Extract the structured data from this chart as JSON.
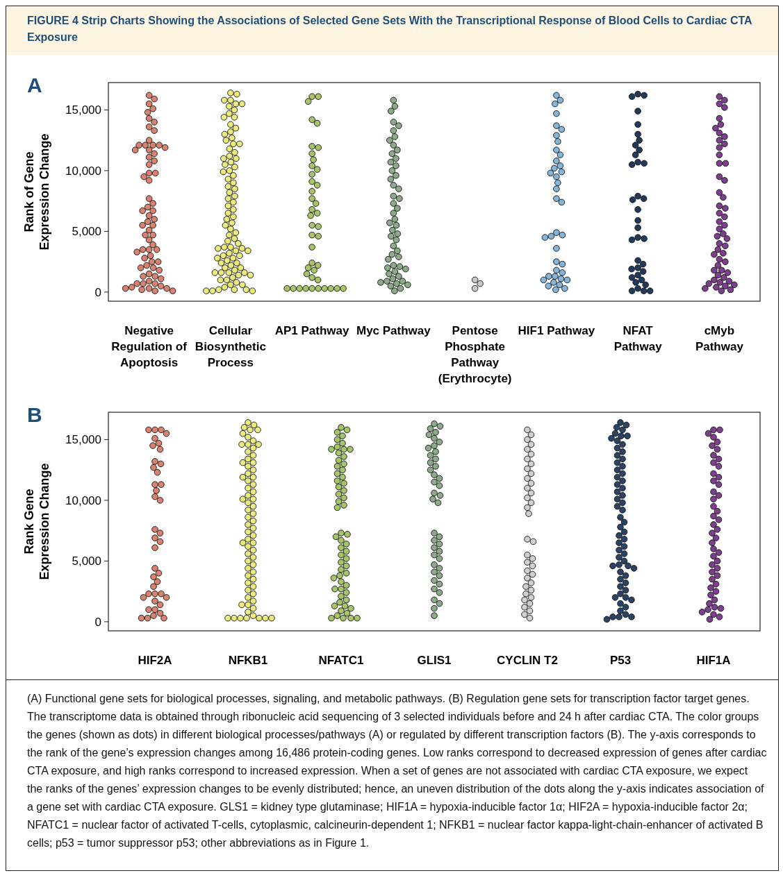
{
  "chart_data": [
    {
      "type": "scatter",
      "title": "FIGURE 4 Strip Charts Showing the Associations of Selected Gene Sets With the Transcriptional Response of Blood Cells to Cardiac CTA Exposure",
      "ylabel": "Rank of Gene Expression Change",
      "annotations": [
        "A"
      ],
      "marker": "circle",
      "grid": false,
      "categories": [
        "Negative Regulation of Apoptosis",
        "Cellular Biosynthetic Process",
        "AP1 Pathway",
        "Myc Pathway",
        "Pentose Phosphate Pathway (Erythrocyte)",
        "HIF1 Pathway",
        "NFAT Pathway",
        "cMyb Pathway"
      ],
      "ylim": [
        -750,
        17250
      ],
      "yticks": [
        0,
        {
          "value": 5000,
          "label": "5,000"
        },
        {
          "value": 10000,
          "label": "10,000"
        },
        {
          "value": 15000,
          "label": "15,000"
        }
      ],
      "series": [
        {
          "color": "#d9826f",
          "x": [
            "Negative Regulation of Apoptosis",
            "Negative Regulation of Apoptosis",
            "Negative Regulation of Apoptosis",
            "Negative Regulation of Apoptosis",
            "Negative Regulation of Apoptosis",
            "Negative Regulation of Apoptosis",
            "Negative Regulation of Apoptosis",
            "Negative Regulation of Apoptosis",
            "Negative Regulation of Apoptosis",
            "Negative Regulation of Apoptosis",
            "Negative Regulation of Apoptosis",
            "Negative Regulation of Apoptosis",
            "Negative Regulation of Apoptosis",
            "Negative Regulation of Apoptosis",
            "Negative Regulation of Apoptosis",
            "Negative Regulation of Apoptosis",
            "Negative Regulation of Apoptosis",
            "Negative Regulation of Apoptosis",
            "Negative Regulation of Apoptosis",
            "Negative Regulation of Apoptosis",
            "Negative Regulation of Apoptosis",
            "Negative Regulation of Apoptosis",
            "Negative Regulation of Apoptosis",
            "Negative Regulation of Apoptosis",
            "Negative Regulation of Apoptosis",
            "Negative Regulation of Apoptosis",
            "Negative Regulation of Apoptosis",
            "Negative Regulation of Apoptosis",
            "Negative Regulation of Apoptosis",
            "Negative Regulation of Apoptosis",
            "Negative Regulation of Apoptosis",
            "Negative Regulation of Apoptosis",
            "Negative Regulation of Apoptosis",
            "Negative Regulation of Apoptosis",
            "Negative Regulation of Apoptosis",
            "Negative Regulation of Apoptosis",
            "Negative Regulation of Apoptosis",
            "Negative Regulation of Apoptosis",
            "Negative Regulation of Apoptosis",
            "Negative Regulation of Apoptosis",
            "Negative Regulation of Apoptosis",
            "Negative Regulation of Apoptosis",
            "Negative Regulation of Apoptosis",
            "Negative Regulation of Apoptosis",
            "Negative Regulation of Apoptosis",
            "Negative Regulation of Apoptosis",
            "Negative Regulation of Apoptosis",
            "Negative Regulation of Apoptosis",
            "Negative Regulation of Apoptosis",
            "Negative Regulation of Apoptosis",
            "Negative Regulation of Apoptosis",
            "Negative Regulation of Apoptosis",
            "Negative Regulation of Apoptosis",
            "Negative Regulation of Apoptosis",
            "Negative Regulation of Apoptosis",
            "Negative Regulation of Apoptosis",
            "Negative Regulation of Apoptosis",
            "Negative Regulation of Apoptosis",
            "Negative Regulation of Apoptosis",
            "Negative Regulation of Apoptosis",
            "Negative Regulation of Apoptosis",
            "Negative Regulation of Apoptosis",
            "Negative Regulation of Apoptosis",
            "Negative Regulation of Apoptosis",
            "Negative Regulation of Apoptosis",
            "Negative Regulation of Apoptosis",
            "Negative Regulation of Apoptosis",
            "Negative Regulation of Apoptosis"
          ],
          "values": [
            16200,
            15900,
            15500,
            15100,
            14800,
            14300,
            14000,
            13600,
            13300,
            12500,
            12100,
            12100,
            12100,
            12100,
            11900,
            11700,
            11700,
            11400,
            11100,
            10800,
            10500,
            9800,
            9800,
            9500,
            9200,
            7700,
            7300,
            7000,
            6700,
            6700,
            6300,
            6000,
            5800,
            5500,
            5500,
            5100,
            4700,
            4700,
            4300,
            3900,
            3500,
            3500,
            3500,
            3300,
            3000,
            2800,
            2500,
            2500,
            2200,
            2000,
            2000,
            1800,
            1500,
            1300,
            1300,
            1100,
            900,
            700,
            700,
            700,
            500,
            400,
            300,
            300,
            300,
            200,
            100,
            100
          ]
        },
        {
          "color": "#ecec7e",
          "x": [
            "Cellular Biosynthetic Process",
            "Cellular Biosynthetic Process",
            "Cellular Biosynthetic Process",
            "Cellular Biosynthetic Process",
            "Cellular Biosynthetic Process",
            "Cellular Biosynthetic Process",
            "Cellular Biosynthetic Process",
            "Cellular Biosynthetic Process",
            "Cellular Biosynthetic Process",
            "Cellular Biosynthetic Process",
            "Cellular Biosynthetic Process",
            "Cellular Biosynthetic Process",
            "Cellular Biosynthetic Process",
            "Cellular Biosynthetic Process",
            "Cellular Biosynthetic Process",
            "Cellular Biosynthetic Process",
            "Cellular Biosynthetic Process",
            "Cellular Biosynthetic Process",
            "Cellular Biosynthetic Process",
            "Cellular Biosynthetic Process",
            "Cellular Biosynthetic Process",
            "Cellular Biosynthetic Process",
            "Cellular Biosynthetic Process",
            "Cellular Biosynthetic Process",
            "Cellular Biosynthetic Process",
            "Cellular Biosynthetic Process",
            "Cellular Biosynthetic Process",
            "Cellular Biosynthetic Process",
            "Cellular Biosynthetic Process",
            "Cellular Biosynthetic Process",
            "Cellular Biosynthetic Process",
            "Cellular Biosynthetic Process",
            "Cellular Biosynthetic Process",
            "Cellular Biosynthetic Process",
            "Cellular Biosynthetic Process",
            "Cellular Biosynthetic Process",
            "Cellular Biosynthetic Process",
            "Cellular Biosynthetic Process",
            "Cellular Biosynthetic Process",
            "Cellular Biosynthetic Process",
            "Cellular Biosynthetic Process",
            "Cellular Biosynthetic Process",
            "Cellular Biosynthetic Process",
            "Cellular Biosynthetic Process",
            "Cellular Biosynthetic Process",
            "Cellular Biosynthetic Process",
            "Cellular Biosynthetic Process",
            "Cellular Biosynthetic Process",
            "Cellular Biosynthetic Process",
            "Cellular Biosynthetic Process",
            "Cellular Biosynthetic Process",
            "Cellular Biosynthetic Process",
            "Cellular Biosynthetic Process",
            "Cellular Biosynthetic Process",
            "Cellular Biosynthetic Process",
            "Cellular Biosynthetic Process",
            "Cellular Biosynthetic Process",
            "Cellular Biosynthetic Process",
            "Cellular Biosynthetic Process",
            "Cellular Biosynthetic Process",
            "Cellular Biosynthetic Process",
            "Cellular Biosynthetic Process",
            "Cellular Biosynthetic Process",
            "Cellular Biosynthetic Process",
            "Cellular Biosynthetic Process",
            "Cellular Biosynthetic Process",
            "Cellular Biosynthetic Process",
            "Cellular Biosynthetic Process",
            "Cellular Biosynthetic Process",
            "Cellular Biosynthetic Process",
            "Cellular Biosynthetic Process",
            "Cellular Biosynthetic Process",
            "Cellular Biosynthetic Process",
            "Cellular Biosynthetic Process",
            "Cellular Biosynthetic Process",
            "Cellular Biosynthetic Process",
            "Cellular Biosynthetic Process",
            "Cellular Biosynthetic Process",
            "Cellular Biosynthetic Process",
            "Cellular Biosynthetic Process",
            "Cellular Biosynthetic Process",
            "Cellular Biosynthetic Process",
            "Cellular Biosynthetic Process",
            "Cellular Biosynthetic Process",
            "Cellular Biosynthetic Process",
            "Cellular Biosynthetic Process",
            "Cellular Biosynthetic Process",
            "Cellular Biosynthetic Process"
          ],
          "values": [
            16400,
            16300,
            15800,
            15800,
            15500,
            15500,
            15300,
            15000,
            14700,
            14400,
            14400,
            13800,
            13500,
            13200,
            13000,
            12700,
            12500,
            12200,
            12200,
            11800,
            11500,
            11200,
            11000,
            11000,
            10700,
            10500,
            10300,
            10000,
            9900,
            9600,
            9300,
            9000,
            8700,
            8500,
            8200,
            7900,
            7700,
            7400,
            7100,
            6800,
            6500,
            6200,
            6000,
            5700,
            5500,
            5200,
            4900,
            4700,
            4400,
            4200,
            4000,
            3700,
            3700,
            3600,
            3600,
            3400,
            3400,
            3200,
            3000,
            3000,
            2800,
            2800,
            2600,
            2400,
            2400,
            2200,
            2000,
            2000,
            1800,
            1600,
            1600,
            1600,
            1600,
            1400,
            1400,
            1200,
            1000,
            1000,
            800,
            600,
            600,
            400,
            200,
            200,
            200,
            100,
            100,
            100
          ]
        },
        {
          "color": "#a7c46b",
          "x": [
            "AP1 Pathway",
            "AP1 Pathway",
            "AP1 Pathway",
            "AP1 Pathway",
            "AP1 Pathway",
            "AP1 Pathway",
            "AP1 Pathway",
            "AP1 Pathway",
            "AP1 Pathway",
            "AP1 Pathway",
            "AP1 Pathway",
            "AP1 Pathway",
            "AP1 Pathway",
            "AP1 Pathway",
            "AP1 Pathway",
            "AP1 Pathway",
            "AP1 Pathway",
            "AP1 Pathway",
            "AP1 Pathway",
            "AP1 Pathway",
            "AP1 Pathway",
            "AP1 Pathway",
            "AP1 Pathway",
            "AP1 Pathway",
            "AP1 Pathway",
            "AP1 Pathway",
            "AP1 Pathway",
            "AP1 Pathway",
            "AP1 Pathway",
            "AP1 Pathway",
            "AP1 Pathway",
            "AP1 Pathway",
            "AP1 Pathway",
            "AP1 Pathway",
            "AP1 Pathway",
            "AP1 Pathway",
            "AP1 Pathway",
            "AP1 Pathway",
            "AP1 Pathway",
            "AP1 Pathway",
            "AP1 Pathway",
            "AP1 Pathway"
          ],
          "values": [
            16100,
            16100,
            15700,
            14200,
            13900,
            12000,
            11900,
            11400,
            10900,
            10400,
            10100,
            9700,
            9100,
            8800,
            8300,
            7700,
            7300,
            6800,
            6500,
            6300,
            5500,
            5400,
            4700,
            4600,
            3700,
            2400,
            2200,
            2000,
            1800,
            1500,
            1200,
            1000,
            300,
            300,
            300,
            300,
            300,
            300,
            300,
            300,
            300,
            300
          ]
        },
        {
          "color": "#8daa8a",
          "x": [
            "Myc Pathway",
            "Myc Pathway",
            "Myc Pathway",
            "Myc Pathway",
            "Myc Pathway",
            "Myc Pathway",
            "Myc Pathway",
            "Myc Pathway",
            "Myc Pathway",
            "Myc Pathway",
            "Myc Pathway",
            "Myc Pathway",
            "Myc Pathway",
            "Myc Pathway",
            "Myc Pathway",
            "Myc Pathway",
            "Myc Pathway",
            "Myc Pathway",
            "Myc Pathway",
            "Myc Pathway",
            "Myc Pathway",
            "Myc Pathway",
            "Myc Pathway",
            "Myc Pathway",
            "Myc Pathway",
            "Myc Pathway",
            "Myc Pathway",
            "Myc Pathway",
            "Myc Pathway",
            "Myc Pathway",
            "Myc Pathway",
            "Myc Pathway",
            "Myc Pathway",
            "Myc Pathway",
            "Myc Pathway",
            "Myc Pathway",
            "Myc Pathway",
            "Myc Pathway",
            "Myc Pathway",
            "Myc Pathway",
            "Myc Pathway",
            "Myc Pathway",
            "Myc Pathway",
            "Myc Pathway",
            "Myc Pathway",
            "Myc Pathway",
            "Myc Pathway",
            "Myc Pathway",
            "Myc Pathway",
            "Myc Pathway",
            "Myc Pathway",
            "Myc Pathway"
          ],
          "values": [
            15800,
            15300,
            14900,
            14000,
            13700,
            13300,
            12800,
            12500,
            12100,
            11700,
            11400,
            11000,
            10700,
            10400,
            10000,
            9600,
            9300,
            8800,
            8500,
            7900,
            7700,
            7300,
            6900,
            6500,
            6000,
            5700,
            5500,
            5100,
            4800,
            4600,
            4300,
            3800,
            3400,
            3100,
            2900,
            2700,
            2200,
            2100,
            2000,
            1900,
            1700,
            1500,
            1300,
            1100,
            900,
            900,
            800,
            700,
            600,
            500,
            300,
            100
          ]
        },
        {
          "color": "#c9c9c9",
          "x": [
            "Pentose Phosphate Pathway (Erythrocyte)",
            "Pentose Phosphate Pathway (Erythrocyte)",
            "Pentose Phosphate Pathway (Erythrocyte)"
          ],
          "values": [
            1000,
            700,
            300
          ]
        },
        {
          "color": "#84b5da",
          "x": [
            "HIF1 Pathway",
            "HIF1 Pathway",
            "HIF1 Pathway",
            "HIF1 Pathway",
            "HIF1 Pathway",
            "HIF1 Pathway",
            "HIF1 Pathway",
            "HIF1 Pathway",
            "HIF1 Pathway",
            "HIF1 Pathway",
            "HIF1 Pathway",
            "HIF1 Pathway",
            "HIF1 Pathway",
            "HIF1 Pathway",
            "HIF1 Pathway",
            "HIF1 Pathway",
            "HIF1 Pathway",
            "HIF1 Pathway",
            "HIF1 Pathway",
            "HIF1 Pathway",
            "HIF1 Pathway",
            "HIF1 Pathway",
            "HIF1 Pathway",
            "HIF1 Pathway",
            "HIF1 Pathway",
            "HIF1 Pathway",
            "HIF1 Pathway",
            "HIF1 Pathway",
            "HIF1 Pathway",
            "HIF1 Pathway",
            "HIF1 Pathway",
            "HIF1 Pathway",
            "HIF1 Pathway",
            "HIF1 Pathway",
            "HIF1 Pathway",
            "HIF1 Pathway",
            "HIF1 Pathway",
            "HIF1 Pathway",
            "HIF1 Pathway"
          ],
          "values": [
            16200,
            15800,
            15500,
            14700,
            13700,
            13400,
            12900,
            12400,
            11700,
            11300,
            10800,
            10400,
            10200,
            9900,
            9800,
            9500,
            9000,
            8500,
            7700,
            7400,
            4900,
            4700,
            4600,
            4500,
            3600,
            2500,
            2300,
            1800,
            1600,
            1300,
            1300,
            1100,
            1000,
            1000,
            800,
            600,
            500,
            300,
            200
          ]
        },
        {
          "color": "#22395a",
          "x": [
            "NFAT Pathway",
            "NFAT Pathway",
            "NFAT Pathway",
            "NFAT Pathway",
            "NFAT Pathway",
            "NFAT Pathway",
            "NFAT Pathway",
            "NFAT Pathway",
            "NFAT Pathway",
            "NFAT Pathway",
            "NFAT Pathway",
            "NFAT Pathway",
            "NFAT Pathway",
            "NFAT Pathway",
            "NFAT Pathway",
            "NFAT Pathway",
            "NFAT Pathway",
            "NFAT Pathway",
            "NFAT Pathway",
            "NFAT Pathway",
            "NFAT Pathway",
            "NFAT Pathway",
            "NFAT Pathway",
            "NFAT Pathway",
            "NFAT Pathway",
            "NFAT Pathway",
            "NFAT Pathway",
            "NFAT Pathway",
            "NFAT Pathway",
            "NFAT Pathway",
            "NFAT Pathway",
            "NFAT Pathway",
            "NFAT Pathway",
            "NFAT Pathway",
            "NFAT Pathway",
            "NFAT Pathway"
          ],
          "values": [
            16300,
            16200,
            16100,
            14900,
            13800,
            13000,
            12500,
            12100,
            11700,
            11300,
            10700,
            10600,
            10500,
            7900,
            7700,
            7600,
            6800,
            5900,
            5300,
            4500,
            4400,
            4300,
            2600,
            2300,
            2000,
            1900,
            1700,
            1400,
            1200,
            1000,
            800,
            600,
            300,
            100,
            100,
            100
          ]
        },
        {
          "color": "#7d3f8e",
          "x": [
            "cMyb Pathway",
            "cMyb Pathway",
            "cMyb Pathway",
            "cMyb Pathway",
            "cMyb Pathway",
            "cMyb Pathway",
            "cMyb Pathway",
            "cMyb Pathway",
            "cMyb Pathway",
            "cMyb Pathway",
            "cMyb Pathway",
            "cMyb Pathway",
            "cMyb Pathway",
            "cMyb Pathway",
            "cMyb Pathway",
            "cMyb Pathway",
            "cMyb Pathway",
            "cMyb Pathway",
            "cMyb Pathway",
            "cMyb Pathway",
            "cMyb Pathway",
            "cMyb Pathway",
            "cMyb Pathway",
            "cMyb Pathway",
            "cMyb Pathway",
            "cMyb Pathway",
            "cMyb Pathway",
            "cMyb Pathway",
            "cMyb Pathway",
            "cMyb Pathway",
            "cMyb Pathway",
            "cMyb Pathway",
            "cMyb Pathway",
            "cMyb Pathway",
            "cMyb Pathway",
            "cMyb Pathway",
            "cMyb Pathway",
            "cMyb Pathway",
            "cMyb Pathway",
            "cMyb Pathway",
            "cMyb Pathway",
            "cMyb Pathway",
            "cMyb Pathway",
            "cMyb Pathway",
            "cMyb Pathway",
            "cMyb Pathway",
            "cMyb Pathway",
            "cMyb Pathway",
            "cMyb Pathway",
            "cMyb Pathway",
            "cMyb Pathway",
            "cMyb Pathway"
          ],
          "values": [
            16100,
            15800,
            15500,
            15200,
            14300,
            13800,
            13500,
            13100,
            12800,
            12500,
            12200,
            11900,
            11300,
            10600,
            10600,
            9500,
            9200,
            8200,
            7800,
            7100,
            6900,
            6500,
            6200,
            5800,
            5500,
            5200,
            4800,
            4600,
            4400,
            4000,
            3800,
            3500,
            3200,
            3100,
            2700,
            2500,
            2200,
            1800,
            1800,
            1600,
            1400,
            1200,
            1000,
            900,
            800,
            700,
            600,
            500,
            400,
            300,
            200,
            100
          ]
        }
      ]
    },
    {
      "type": "scatter",
      "ylabel": "Rank Gene Expression Change",
      "annotations": [
        "B",
        "(A) Functional gene sets for biological processes, signaling, and metabolic pathways. (B) Regulation gene sets for transcription factor target genes. The transcriptome data is obtained through ribonucleic acid sequencing of 3 selected individuals before and 24 h after cardiac CTA. The color groups the genes (shown as dots) in different biological processes/pathways (A) or regulated by different transcription factors (B). The y-axis corresponds to the rank of the gene’s expression changes among 16,486 protein-coding genes. Low ranks correspond to decreased expression of genes after cardiac CTA exposure, and high ranks correspond to increased expression. When a set of genes are not associated with cardiac CTA exposure, we expect the ranks of the genes’ expression changes to be evenly distributed; hence, an uneven distribution of the dots along the y-axis indicates association of a gene set with cardiac CTA exposure. GLS1 = kidney type glutaminase; HIF1A = hypoxia-inducible factor 1α; HIF2A = hypoxia-inducible factor 2α; NFATC1 = nuclear factor of activated T-cells, cytoplasmic, calcineurin-dependent 1; NFKB1 = nuclear factor kappa-light-chain-enhancer of activated B cells; p53 = tumor suppressor p53; other abbreviations as in Figure 1."
      ],
      "marker": "circle",
      "grid": false,
      "categories": [
        "HIF2A",
        "NFKB1",
        "NFATC1",
        "GLIS1",
        "CYCLIN T2",
        "P53",
        "HIF1A"
      ],
      "ylim": [
        -750,
        17250
      ],
      "yticks": [
        0,
        {
          "value": 5000,
          "label": "5,000"
        },
        {
          "value": 10000,
          "label": "10,000"
        },
        {
          "value": 15000,
          "label": "15,000"
        }
      ],
      "series": [
        {
          "color": "#d9826f",
          "x": [
            "HIF2A",
            "HIF2A",
            "HIF2A",
            "HIF2A",
            "HIF2A",
            "HIF2A",
            "HIF2A",
            "HIF2A",
            "HIF2A",
            "HIF2A",
            "HIF2A",
            "HIF2A",
            "HIF2A",
            "HIF2A",
            "HIF2A",
            "HIF2A",
            "HIF2A",
            "HIF2A",
            "HIF2A",
            "HIF2A",
            "HIF2A",
            "HIF2A",
            "HIF2A",
            "HIF2A",
            "HIF2A",
            "HIF2A",
            "HIF2A",
            "HIF2A",
            "HIF2A",
            "HIF2A",
            "HIF2A",
            "HIF2A",
            "HIF2A",
            "HIF2A",
            "HIF2A",
            "HIF2A",
            "HIF2A",
            "HIF2A",
            "HIF2A",
            "HIF2A",
            "HIF2A"
          ],
          "values": [
            15800,
            15800,
            15800,
            15500,
            15100,
            14700,
            14500,
            14200,
            13200,
            13000,
            12700,
            12300,
            11300,
            11300,
            10800,
            10300,
            10000,
            7600,
            7300,
            6900,
            6600,
            6100,
            4400,
            4000,
            3700,
            3300,
            2900,
            2300,
            2300,
            2300,
            2000,
            2000,
            1700,
            1400,
            1000,
            1000,
            700,
            500,
            300,
            300,
            300
          ]
        },
        {
          "color": "#ecec7e",
          "x": [
            "NFKB1",
            "NFKB1",
            "NFKB1",
            "NFKB1",
            "NFKB1",
            "NFKB1",
            "NFKB1",
            "NFKB1",
            "NFKB1",
            "NFKB1",
            "NFKB1",
            "NFKB1",
            "NFKB1",
            "NFKB1",
            "NFKB1",
            "NFKB1",
            "NFKB1",
            "NFKB1",
            "NFKB1",
            "NFKB1",
            "NFKB1",
            "NFKB1",
            "NFKB1",
            "NFKB1",
            "NFKB1",
            "NFKB1",
            "NFKB1",
            "NFKB1",
            "NFKB1",
            "NFKB1",
            "NFKB1",
            "NFKB1",
            "NFKB1",
            "NFKB1",
            "NFKB1",
            "NFKB1",
            "NFKB1",
            "NFKB1",
            "NFKB1",
            "NFKB1",
            "NFKB1",
            "NFKB1",
            "NFKB1",
            "NFKB1",
            "NFKB1",
            "NFKB1",
            "NFKB1",
            "NFKB1",
            "NFKB1",
            "NFKB1",
            "NFKB1",
            "NFKB1",
            "NFKB1",
            "NFKB1",
            "NFKB1",
            "NFKB1",
            "NFKB1",
            "NFKB1",
            "NFKB1",
            "NFKB1",
            "NFKB1",
            "NFKB1",
            "NFKB1",
            "NFKB1",
            "NFKB1",
            "NFKB1",
            "NFKB1",
            "NFKB1",
            "NFKB1",
            "NFKB1"
          ],
          "values": [
            16400,
            16200,
            16000,
            15800,
            15800,
            15500,
            15200,
            14900,
            14600,
            14600,
            14600,
            14300,
            14000,
            13700,
            13400,
            13100,
            13100,
            12800,
            12500,
            12200,
            11900,
            11900,
            11600,
            11300,
            11000,
            10700,
            10400,
            10100,
            10100,
            9800,
            9500,
            9200,
            8900,
            8600,
            8300,
            8000,
            7700,
            7400,
            7100,
            6800,
            6500,
            6500,
            6200,
            5900,
            5600,
            5300,
            5000,
            4700,
            4400,
            4100,
            3800,
            3500,
            3200,
            2900,
            2600,
            2300,
            2000,
            1700,
            1400,
            1400,
            1100,
            800,
            500,
            300,
            300,
            300,
            300,
            300,
            300,
            300
          ]
        },
        {
          "color": "#a7c46b",
          "x": [
            "NFATC1",
            "NFATC1",
            "NFATC1",
            "NFATC1",
            "NFATC1",
            "NFATC1",
            "NFATC1",
            "NFATC1",
            "NFATC1",
            "NFATC1",
            "NFATC1",
            "NFATC1",
            "NFATC1",
            "NFATC1",
            "NFATC1",
            "NFATC1",
            "NFATC1",
            "NFATC1",
            "NFATC1",
            "NFATC1",
            "NFATC1",
            "NFATC1",
            "NFATC1",
            "NFATC1",
            "NFATC1",
            "NFATC1",
            "NFATC1",
            "NFATC1",
            "NFATC1",
            "NFATC1",
            "NFATC1",
            "NFATC1",
            "NFATC1",
            "NFATC1",
            "NFATC1",
            "NFATC1",
            "NFATC1",
            "NFATC1",
            "NFATC1",
            "NFATC1",
            "NFATC1",
            "NFATC1",
            "NFATC1",
            "NFATC1",
            "NFATC1",
            "NFATC1",
            "NFATC1",
            "NFATC1",
            "NFATC1",
            "NFATC1",
            "NFATC1",
            "NFATC1",
            "NFATC1",
            "NFATC1",
            "NFATC1",
            "NFATC1",
            "NFATC1",
            "NFATC1",
            "NFATC1",
            "NFATC1"
          ],
          "values": [
            16000,
            15800,
            15600,
            15300,
            15000,
            14700,
            14400,
            14200,
            14200,
            14200,
            13900,
            13600,
            13300,
            13000,
            12800,
            12500,
            12200,
            11900,
            11600,
            11400,
            11100,
            10800,
            10500,
            10200,
            9900,
            9600,
            9400,
            7300,
            7200,
            7000,
            6700,
            6400,
            6100,
            5800,
            5500,
            5200,
            4900,
            4600,
            4300,
            4000,
            3800,
            3600,
            3300,
            3000,
            2700,
            2700,
            2400,
            2100,
            1800,
            1600,
            1300,
            1300,
            1100,
            900,
            700,
            500,
            300,
            300,
            300,
            300
          ]
        },
        {
          "color": "#8daa8a",
          "x": [
            "GLIS1",
            "GLIS1",
            "GLIS1",
            "GLIS1",
            "GLIS1",
            "GLIS1",
            "GLIS1",
            "GLIS1",
            "GLIS1",
            "GLIS1",
            "GLIS1",
            "GLIS1",
            "GLIS1",
            "GLIS1",
            "GLIS1",
            "GLIS1",
            "GLIS1",
            "GLIS1",
            "GLIS1",
            "GLIS1",
            "GLIS1",
            "GLIS1",
            "GLIS1",
            "GLIS1",
            "GLIS1",
            "GLIS1",
            "GLIS1",
            "GLIS1",
            "GLIS1",
            "GLIS1",
            "GLIS1",
            "GLIS1",
            "GLIS1",
            "GLIS1",
            "GLIS1",
            "GLIS1",
            "GLIS1",
            "GLIS1",
            "GLIS1",
            "GLIS1",
            "GLIS1",
            "GLIS1",
            "GLIS1"
          ],
          "values": [
            16300,
            16100,
            15900,
            15600,
            15400,
            15100,
            14800,
            14500,
            14300,
            14000,
            13700,
            13400,
            13100,
            12800,
            12500,
            12100,
            11800,
            11500,
            11200,
            10600,
            10400,
            10100,
            9800,
            7300,
            7000,
            6700,
            6400,
            6100,
            5800,
            5500,
            5200,
            4700,
            4400,
            4100,
            3800,
            3400,
            3100,
            2700,
            2400,
            1800,
            1500,
            1100,
            500
          ]
        },
        {
          "color": "#d0d0d0",
          "x": [
            "CYCLIN T2",
            "CYCLIN T2",
            "CYCLIN T2",
            "CYCLIN T2",
            "CYCLIN T2",
            "CYCLIN T2",
            "CYCLIN T2",
            "CYCLIN T2",
            "CYCLIN T2",
            "CYCLIN T2",
            "CYCLIN T2",
            "CYCLIN T2",
            "CYCLIN T2",
            "CYCLIN T2",
            "CYCLIN T2",
            "CYCLIN T2",
            "CYCLIN T2",
            "CYCLIN T2",
            "CYCLIN T2",
            "CYCLIN T2",
            "CYCLIN T2",
            "CYCLIN T2",
            "CYCLIN T2",
            "CYCLIN T2",
            "CYCLIN T2",
            "CYCLIN T2",
            "CYCLIN T2",
            "CYCLIN T2",
            "CYCLIN T2",
            "CYCLIN T2",
            "CYCLIN T2",
            "CYCLIN T2",
            "CYCLIN T2",
            "CYCLIN T2",
            "CYCLIN T2",
            "CYCLIN T2",
            "CYCLIN T2",
            "CYCLIN T2"
          ],
          "values": [
            15800,
            15400,
            15000,
            14600,
            14200,
            13800,
            13400,
            13000,
            12600,
            12200,
            11800,
            11400,
            11000,
            10600,
            10200,
            9800,
            9400,
            8900,
            6800,
            6600,
            5500,
            5200,
            4900,
            4600,
            4200,
            3900,
            3600,
            3200,
            2900,
            2600,
            2300,
            2000,
            1800,
            1500,
            1200,
            900,
            600,
            300
          ]
        },
        {
          "color": "#2b4466",
          "x": [
            "P53",
            "P53",
            "P53",
            "P53",
            "P53",
            "P53",
            "P53",
            "P53",
            "P53",
            "P53",
            "P53",
            "P53",
            "P53",
            "P53",
            "P53",
            "P53",
            "P53",
            "P53",
            "P53",
            "P53",
            "P53",
            "P53",
            "P53",
            "P53",
            "P53",
            "P53",
            "P53",
            "P53",
            "P53",
            "P53",
            "P53",
            "P53",
            "P53",
            "P53",
            "P53",
            "P53",
            "P53",
            "P53",
            "P53",
            "P53",
            "P53",
            "P53",
            "P53",
            "P53",
            "P53",
            "P53",
            "P53",
            "P53",
            "P53",
            "P53",
            "P53",
            "P53",
            "P53",
            "P53",
            "P53",
            "P53",
            "P53",
            "P53",
            "P53",
            "P53",
            "P53",
            "P53"
          ],
          "values": [
            16400,
            16200,
            16000,
            15800,
            15500,
            15300,
            15300,
            15100,
            14900,
            14600,
            14300,
            14000,
            13700,
            13400,
            13100,
            12800,
            12500,
            12200,
            11900,
            11600,
            11300,
            11000,
            10700,
            10400,
            10100,
            9800,
            9500,
            9200,
            8600,
            8200,
            7800,
            7400,
            7100,
            6800,
            6500,
            6200,
            5900,
            5600,
            5300,
            5000,
            4700,
            4600,
            4600,
            4400,
            4100,
            3800,
            3500,
            3200,
            2900,
            2600,
            2300,
            2000,
            2000,
            1800,
            1500,
            1200,
            900,
            600,
            400,
            400,
            400,
            200
          ]
        },
        {
          "color": "#7d3f8e",
          "x": [
            "HIF1A",
            "HIF1A",
            "HIF1A",
            "HIF1A",
            "HIF1A",
            "HIF1A",
            "HIF1A",
            "HIF1A",
            "HIF1A",
            "HIF1A",
            "HIF1A",
            "HIF1A",
            "HIF1A",
            "HIF1A",
            "HIF1A",
            "HIF1A",
            "HIF1A",
            "HIF1A",
            "HIF1A",
            "HIF1A",
            "HIF1A",
            "HIF1A",
            "HIF1A",
            "HIF1A",
            "HIF1A",
            "HIF1A",
            "HIF1A",
            "HIF1A",
            "HIF1A",
            "HIF1A",
            "HIF1A",
            "HIF1A",
            "HIF1A",
            "HIF1A",
            "HIF1A",
            "HIF1A",
            "HIF1A",
            "HIF1A",
            "HIF1A",
            "HIF1A",
            "HIF1A",
            "HIF1A",
            "HIF1A",
            "HIF1A",
            "HIF1A",
            "HIF1A",
            "HIF1A",
            "HIF1A",
            "HIF1A"
          ],
          "values": [
            15800,
            15800,
            15500,
            15200,
            14800,
            14500,
            14200,
            13700,
            13400,
            13100,
            12800,
            12200,
            11900,
            11600,
            11300,
            10700,
            10400,
            10100,
            9500,
            9100,
            8700,
            8400,
            8000,
            7600,
            7300,
            6900,
            6500,
            6000,
            5700,
            5400,
            5000,
            4700,
            4400,
            4100,
            3800,
            3500,
            3100,
            2800,
            2500,
            2200,
            1800,
            1500,
            1200,
            1100,
            1000,
            800,
            600,
            400,
            200
          ]
        }
      ]
    }
  ]
}
